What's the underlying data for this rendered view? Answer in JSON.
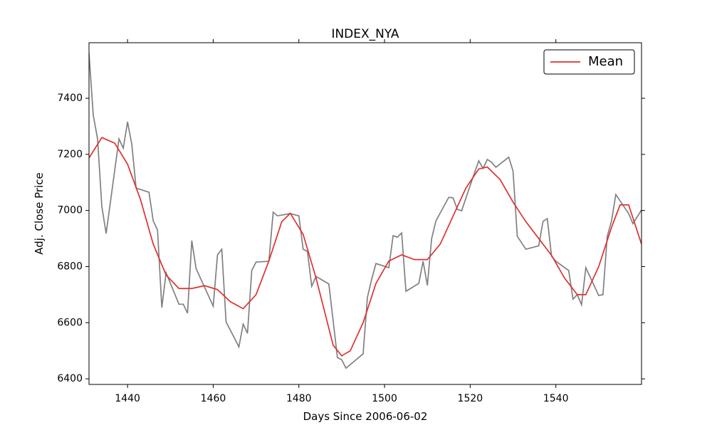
{
  "chart_data": {
    "type": "line",
    "title": "INDEX_NYA",
    "x_label": "Days Since 2006-06-02",
    "y_label": "Adj. Close Price",
    "xlim": [
      1431,
      1560
    ],
    "ylim": [
      6380,
      7598
    ],
    "xticks": [
      1440,
      1460,
      1480,
      1500,
      1520,
      1540
    ],
    "yticks": [
      6400,
      6600,
      6800,
      7000,
      7200,
      7400
    ],
    "legend": "upper right",
    "series": [
      {
        "color": "#808080",
        "x": [
          1431,
          1432,
          1433,
          1434,
          1435,
          1438,
          1439,
          1440,
          1441,
          1442,
          1445,
          1446,
          1447,
          1448,
          1449,
          1452,
          1453,
          1454,
          1455,
          1456,
          1460,
          1461,
          1462,
          1463,
          1466,
          1467,
          1468,
          1469,
          1470,
          1473,
          1474,
          1475,
          1478,
          1480,
          1481,
          1482,
          1483,
          1484,
          1487,
          1489,
          1490,
          1491,
          1495,
          1496,
          1497,
          1498,
          1501,
          1502,
          1503,
          1504,
          1505,
          1508,
          1509,
          1510,
          1511,
          1512,
          1515,
          1516,
          1517,
          1518,
          1521,
          1522,
          1523,
          1524,
          1525,
          1526,
          1529,
          1530,
          1531,
          1533,
          1536,
          1537,
          1538,
          1539,
          1540,
          1543,
          1544,
          1545,
          1546,
          1547,
          1550,
          1551,
          1552,
          1553,
          1554,
          1557,
          1558,
          1560
        ],
        "values": [
          7560,
          7339,
          7255,
          7014,
          6918,
          7255,
          7222,
          7316,
          7235,
          7080,
          7065,
          6963,
          6930,
          6654,
          6778,
          6666,
          6666,
          6634,
          6893,
          6793,
          6659,
          6842,
          6862,
          6603,
          6514,
          6595,
          6562,
          6786,
          6816,
          6819,
          6994,
          6981,
          6989,
          6981,
          6862,
          6854,
          6730,
          6765,
          6738,
          6476,
          6468,
          6438,
          6489,
          6690,
          6755,
          6811,
          6796,
          6910,
          6905,
          6920,
          6712,
          6740,
          6819,
          6733,
          6900,
          6963,
          7047,
          7045,
          7004,
          6999,
          7134,
          7177,
          7150,
          7182,
          7172,
          7154,
          7190,
          7141,
          6908,
          6862,
          6874,
          6961,
          6971,
          6837,
          6819,
          6786,
          6684,
          6700,
          6664,
          6796,
          6697,
          6700,
          6908,
          6963,
          7057,
          6989,
          6953,
          7002
        ]
      },
      {
        "name": "Mean",
        "color": "#e03030",
        "x": [
          1431,
          1434,
          1437,
          1440,
          1443,
          1446,
          1449,
          1452,
          1455,
          1458,
          1461,
          1464,
          1467,
          1470,
          1473,
          1476,
          1478,
          1481,
          1484,
          1486,
          1488,
          1490,
          1492,
          1495,
          1498,
          1501,
          1504,
          1507,
          1510,
          1513,
          1516,
          1519,
          1522,
          1524,
          1527,
          1530,
          1533,
          1536,
          1539,
          1542,
          1545,
          1547,
          1550,
          1553,
          1555,
          1557,
          1560
        ],
        "values": [
          7187,
          7260,
          7240,
          7165,
          7040,
          6880,
          6770,
          6722,
          6722,
          6732,
          6718,
          6675,
          6650,
          6700,
          6820,
          6960,
          6990,
          6915,
          6760,
          6640,
          6520,
          6482,
          6500,
          6600,
          6740,
          6820,
          6842,
          6825,
          6825,
          6880,
          6980,
          7080,
          7148,
          7155,
          7110,
          7030,
          6960,
          6900,
          6840,
          6760,
          6700,
          6700,
          6800,
          6940,
          7020,
          7020,
          6880
        ]
      }
    ]
  }
}
